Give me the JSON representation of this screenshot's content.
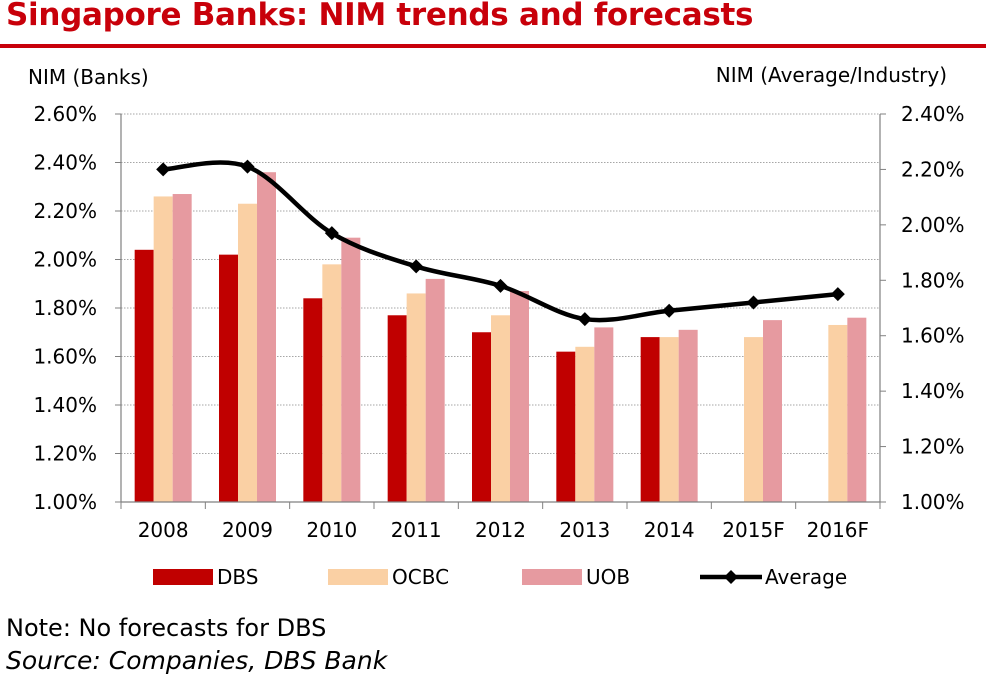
{
  "title": "Singapore Banks: NIM trends and forecasts",
  "note": "Note: No forecasts for DBS",
  "source": "Source: Companies, DBS Bank",
  "colors": {
    "title": "#c8000a",
    "dbs": "#c00000",
    "ocbc": "#fad0a4",
    "uob": "#e69aa0",
    "average": "#000000",
    "grid": "#a6a6a6"
  },
  "chart_data": {
    "type": "bar",
    "title": "Singapore Banks: NIM trends and forecasts",
    "categories": [
      "2008",
      "2009",
      "2010",
      "2011",
      "2012",
      "2013",
      "2014",
      "2015F",
      "2016F"
    ],
    "ylabel_left": "NIM (Banks)",
    "ylabel_right": "NIM (Average/Industry)",
    "ylim_left": [
      1.0,
      2.6
    ],
    "ylim_right": [
      1.0,
      2.4
    ],
    "yticks_left": [
      "1.00%",
      "1.20%",
      "1.40%",
      "1.60%",
      "1.80%",
      "2.00%",
      "2.20%",
      "2.40%",
      "2.60%"
    ],
    "yticks_right": [
      "1.00%",
      "1.20%",
      "1.40%",
      "1.60%",
      "1.80%",
      "2.00%",
      "2.20%",
      "2.40%"
    ],
    "grid": true,
    "legend_position": "bottom",
    "series": [
      {
        "name": "DBS",
        "type": "bar",
        "axis": "left",
        "values": [
          2.04,
          2.02,
          1.84,
          1.77,
          1.7,
          1.62,
          1.68,
          null,
          null
        ]
      },
      {
        "name": "OCBC",
        "type": "bar",
        "axis": "left",
        "values": [
          2.26,
          2.23,
          1.98,
          1.86,
          1.77,
          1.64,
          1.68,
          1.68,
          1.73
        ]
      },
      {
        "name": "UOB",
        "type": "bar",
        "axis": "left",
        "values": [
          2.27,
          2.36,
          2.09,
          1.92,
          1.87,
          1.72,
          1.71,
          1.75,
          1.76
        ]
      },
      {
        "name": "Average",
        "type": "line",
        "axis": "right",
        "values": [
          2.2,
          2.21,
          1.97,
          1.85,
          1.78,
          1.66,
          1.69,
          1.72,
          1.75
        ]
      }
    ]
  }
}
